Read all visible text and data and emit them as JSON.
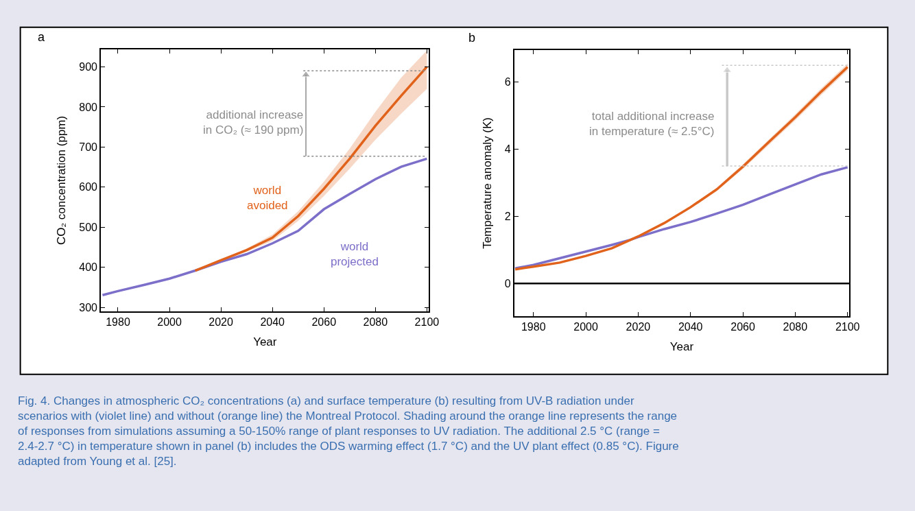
{
  "chart_data": [
    {
      "type": "line",
      "title": "a",
      "xlabel": "Year",
      "ylabel": "CO₂ concentration (ppm)",
      "xlim": [
        1973.4,
        2100.8
      ],
      "ylim": [
        290,
        944
      ],
      "xticks": [
        1980,
        2000,
        2020,
        2040,
        2060,
        2080,
        2100
      ],
      "yticks": [
        300,
        400,
        500,
        600,
        700,
        800,
        900
      ],
      "marker": "none",
      "line_style": "solid",
      "series": [
        {
          "name": "world projected",
          "color": "#7b6fc9",
          "x": [
            1974,
            1980,
            1990,
            2000,
            2010,
            2020,
            2030,
            2040,
            2050,
            2060,
            2070,
            2080,
            2090,
            2100
          ],
          "values": [
            331,
            341,
            356,
            372,
            392,
            414,
            433,
            460,
            491,
            545,
            583,
            620,
            651,
            671
          ]
        },
        {
          "name": "world avoided",
          "color": "#e0621b",
          "x": [
            2010,
            2020,
            2030,
            2040,
            2050,
            2060,
            2070,
            2080,
            2090,
            2100
          ],
          "values": [
            392,
            418,
            443,
            474,
            528,
            596,
            671,
            753,
            828,
            900
          ],
          "lower": [
            392,
            416,
            439,
            466,
            516,
            578,
            646,
            718,
            783,
            845
          ],
          "upper": [
            392,
            420,
            447,
            482,
            540,
            614,
            696,
            788,
            873,
            941
          ]
        },
        {
          "type": "line",
          "color": "#8c8c8c",
          "line_style": "dotted",
          "x": [
            2052,
            2100
          ],
          "values": [
            890,
            890
          ]
        },
        {
          "type": "line",
          "color": "#8c8c8c",
          "line_style": "dotted",
          "x": [
            2052,
            2100
          ],
          "values": [
            677,
            677
          ]
        },
        {
          "type": "line",
          "color": "#8c8c8c",
          "marker": "triangle",
          "x": [
            2053,
            2053
          ],
          "values": [
            677,
            880
          ]
        }
      ],
      "annotations": [
        "additional increase\nin CO₂ (≈ 190 ppm)",
        "Fig. 4. Changes in atmospheric CO₂ concentrations (a) and surface temperature (b) resulting from UV-B radiation under\nscenarios with (violet line) and without (orange line) the Montreal Protocol. Shading around the orange line represents the range\nof responses from simulations assuming a 50-150% range of plant responses to UV radiation. The additional 2.5 °C (range =\n2.4-2.7 °C) in temperature shown in panel (b) includes the ODS warming effect (1.7 °C) and the UV plant effect (0.85 °C). Figure\nadapted from Young et al. [25]."
      ]
    },
    {
      "type": "line",
      "title": "b",
      "xlabel": "Year",
      "ylabel": "Temperature anomaly (K)",
      "xlim": [
        1972.7,
        2100.6
      ],
      "ylim": [
        -0.98,
        6.96
      ],
      "xticks": [
        1980,
        2000,
        2020,
        2040,
        2060,
        2080,
        2100
      ],
      "yticks": [
        0,
        2,
        4,
        6
      ],
      "marker": "none",
      "line_style": "solid",
      "series": [
        {
          "color": "#7b6fc9",
          "x": [
            1973,
            1980,
            1990,
            2000,
            2010,
            2017,
            2020,
            2030,
            2040,
            2050,
            2060,
            2070,
            2080,
            2090,
            2100
          ],
          "values": [
            0.45,
            0.55,
            0.75,
            0.95,
            1.15,
            1.3,
            1.38,
            1.62,
            1.83,
            2.08,
            2.34,
            2.65,
            2.95,
            3.25,
            3.46
          ]
        },
        {
          "color": "#e0621b",
          "x": [
            1973,
            1980,
            1990,
            2000,
            2010,
            2020,
            2030,
            2040,
            2050,
            2060,
            2070,
            2080,
            2090,
            2100
          ],
          "values": [
            0.42,
            0.5,
            0.62,
            0.82,
            1.05,
            1.4,
            1.8,
            2.27,
            2.8,
            3.48,
            4.22,
            4.95,
            5.72,
            6.45
          ],
          "lower": [
            0.42,
            0.5,
            0.62,
            0.82,
            1.05,
            1.38,
            1.77,
            2.23,
            2.75,
            3.41,
            4.14,
            4.86,
            5.62,
            6.35
          ],
          "upper": [
            0.42,
            0.5,
            0.62,
            0.82,
            1.05,
            1.42,
            1.83,
            2.31,
            2.85,
            3.55,
            4.3,
            5.04,
            5.82,
            6.55
          ]
        },
        {
          "type": "line",
          "color": "#c8c8c8",
          "line_style": "dotted",
          "x": [
            2052,
            2100
          ],
          "values": [
            6.5,
            6.5
          ]
        },
        {
          "type": "line",
          "color": "#c8c8c8",
          "line_style": "dotted",
          "x": [
            2052,
            2100
          ],
          "values": [
            3.5,
            3.5
          ]
        },
        {
          "type": "line",
          "color": "#c8c8c8",
          "marker": "triangle",
          "x": [
            2054,
            2054
          ],
          "values": [
            3.5,
            6.35
          ]
        }
      ],
      "ref_lines": [
        {
          "axis": "y",
          "value": 0,
          "color": "#000000"
        }
      ],
      "annotations": [
        "total additional increase\nin temperature (≈ 2.5°C)"
      ]
    }
  ]
}
